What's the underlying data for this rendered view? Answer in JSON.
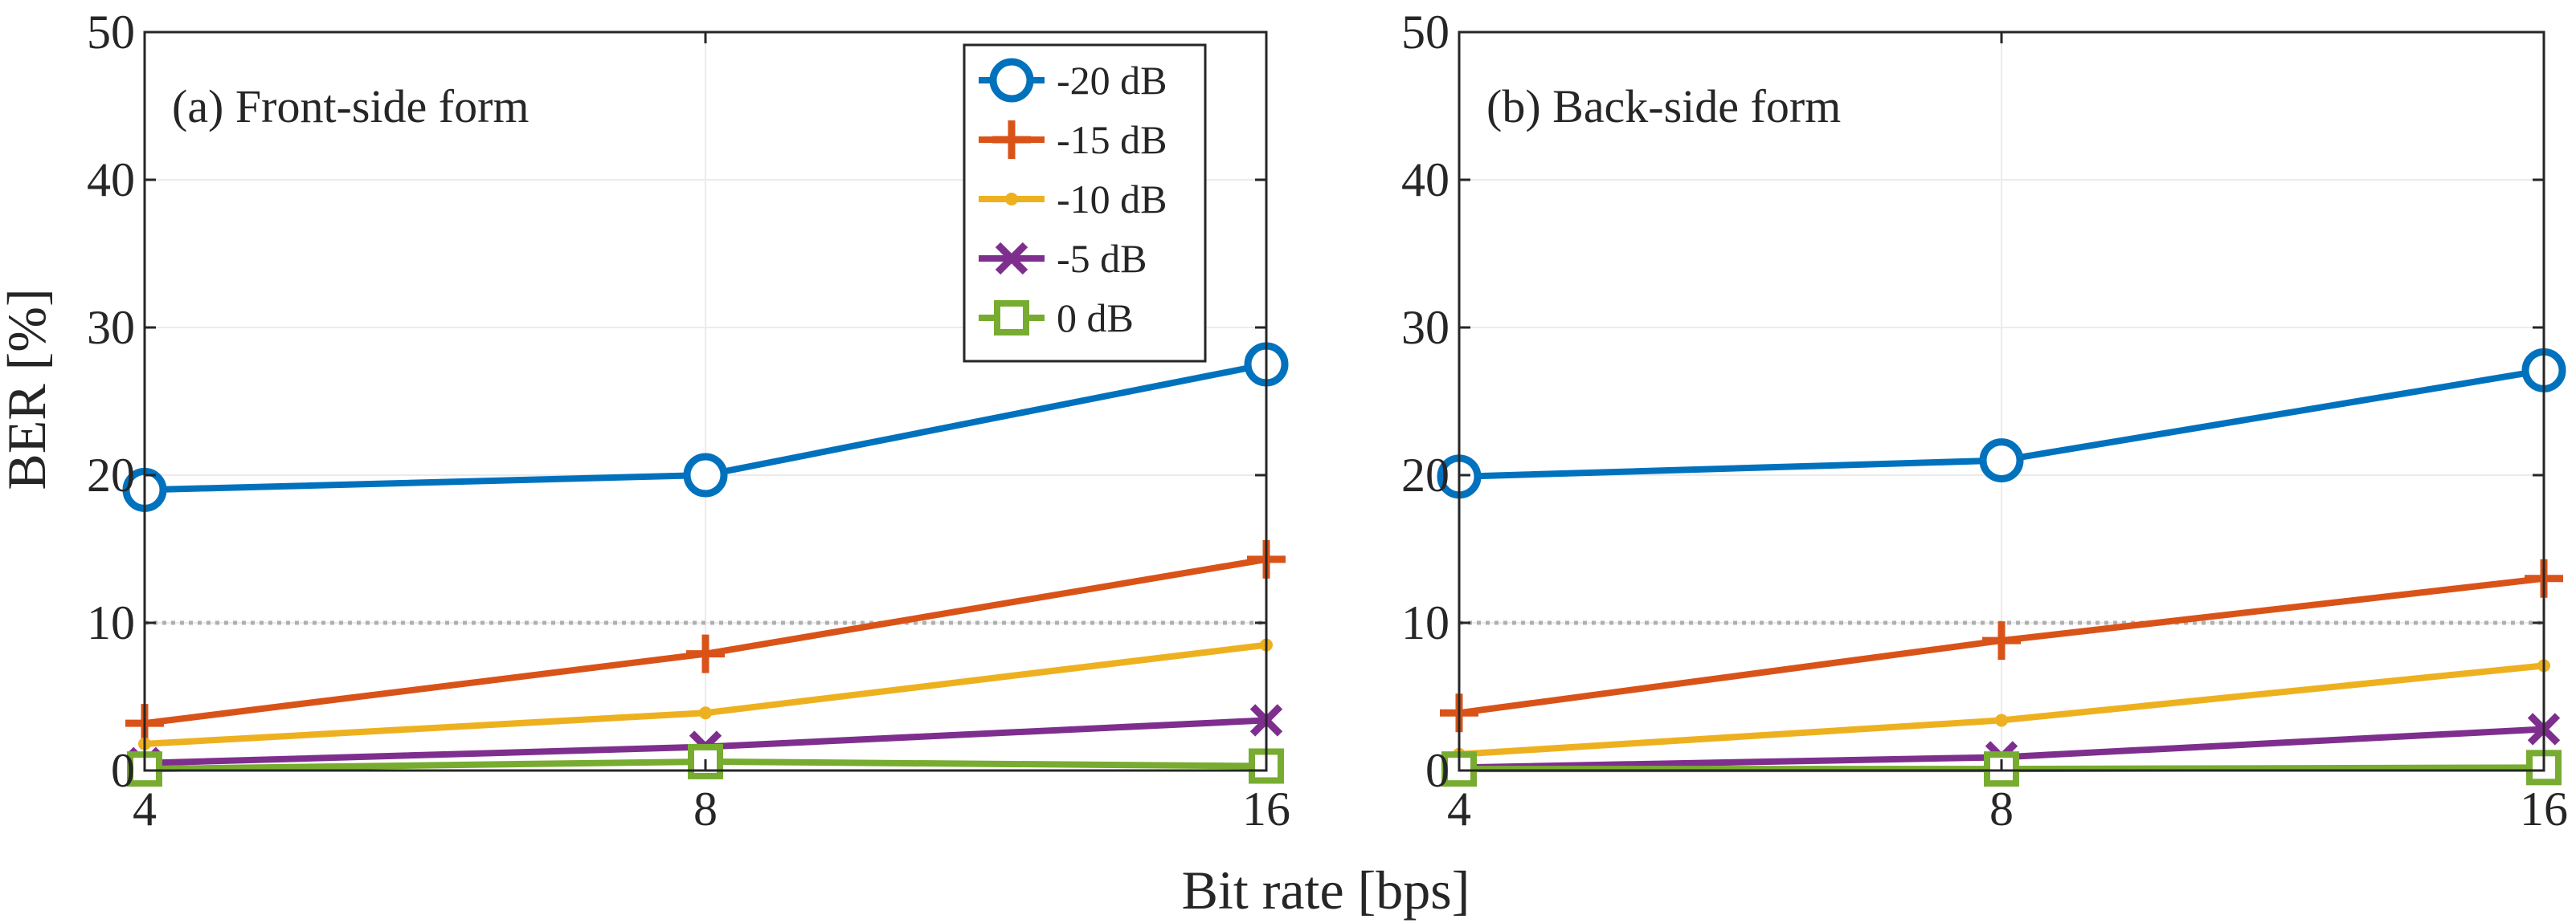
{
  "figure": {
    "shared_xlabel": "Bit rate [bps]",
    "shared_ylabel": "BER [%]",
    "threshold_value": 10,
    "threshold_color": "#b0b0b0"
  },
  "chart_data": [
    {
      "type": "line",
      "title": "(a) Front-side form",
      "xlabel": "Bit rate [bps]",
      "ylabel": "BER [%]",
      "x": [
        4,
        8,
        16
      ],
      "xticks": [
        "4",
        "8",
        "16"
      ],
      "yticks": [
        "0",
        "10",
        "20",
        "30",
        "40",
        "50"
      ],
      "ylim": [
        0,
        50
      ],
      "grid": true,
      "legend_position": "top-right",
      "series": [
        {
          "name": "-20 dB",
          "values": [
            19.0,
            20.0,
            27.5
          ],
          "color": "#0072BD",
          "marker": "circle"
        },
        {
          "name": "-15 dB",
          "values": [
            3.2,
            7.9,
            14.3
          ],
          "color": "#D95319",
          "marker": "plus"
        },
        {
          "name": "-10 dB",
          "values": [
            1.8,
            3.9,
            8.5
          ],
          "color": "#EDB120",
          "marker": "dot"
        },
        {
          "name": "-5 dB",
          "values": [
            0.5,
            1.6,
            3.4
          ],
          "color": "#7E2F8E",
          "marker": "x"
        },
        {
          "name": "0 dB",
          "values": [
            0.1,
            0.6,
            0.3
          ],
          "color": "#77AC30",
          "marker": "square"
        }
      ]
    },
    {
      "type": "line",
      "title": "(b) Back-side form",
      "xlabel": "Bit rate [bps]",
      "ylabel": "BER [%]",
      "x": [
        4,
        8,
        16
      ],
      "xticks": [
        "4",
        "8",
        "16"
      ],
      "yticks": [
        "0",
        "10",
        "20",
        "30",
        "40",
        "50"
      ],
      "ylim": [
        0,
        50
      ],
      "grid": true,
      "series": [
        {
          "name": "-20 dB",
          "values": [
            19.9,
            21.0,
            27.1
          ],
          "color": "#0072BD",
          "marker": "circle"
        },
        {
          "name": "-15 dB",
          "values": [
            3.9,
            8.8,
            13.0
          ],
          "color": "#D95319",
          "marker": "plus"
        },
        {
          "name": "-10 dB",
          "values": [
            1.1,
            3.4,
            7.1
          ],
          "color": "#EDB120",
          "marker": "dot"
        },
        {
          "name": "-5 dB",
          "values": [
            0.2,
            0.9,
            2.8
          ],
          "color": "#7E2F8E",
          "marker": "x"
        },
        {
          "name": "0 dB",
          "values": [
            0.1,
            0.1,
            0.2
          ],
          "color": "#77AC30",
          "marker": "square"
        }
      ]
    }
  ]
}
